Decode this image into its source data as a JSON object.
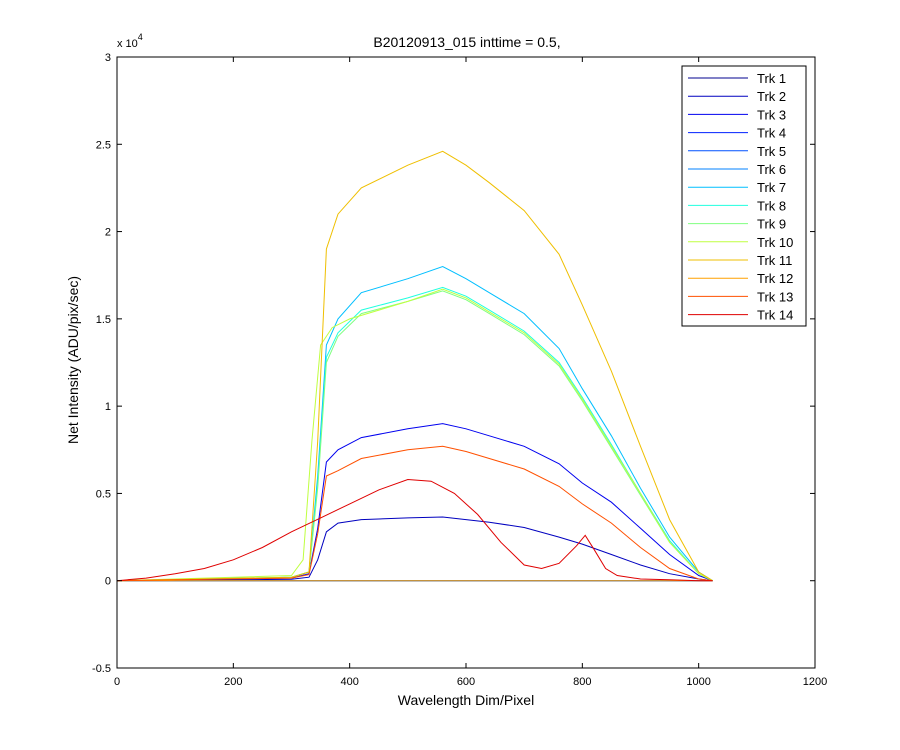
{
  "chart_data": {
    "type": "line",
    "title": "B20120913_015 inttime = 0.5,",
    "xlabel": "Wavelength Dim/Pixel",
    "ylabel": "Net Intensity (ADU/pix/sec)",
    "xlim": [
      0,
      1200
    ],
    "ylim": [
      -5000,
      30000
    ],
    "x_ticks": [
      0,
      200,
      400,
      600,
      800,
      1000,
      1200
    ],
    "x_tick_labels": [
      "0",
      "200",
      "400",
      "600",
      "800",
      "1000",
      "1200"
    ],
    "y_ticks": [
      -5000,
      0,
      5000,
      10000,
      15000,
      20000,
      25000,
      30000
    ],
    "y_tick_labels": [
      "-0.5",
      "0",
      "0.5",
      "1",
      "1.5",
      "2",
      "2.5",
      "3"
    ],
    "y_multiplier": "x 10",
    "y_multiplier_exp": "4",
    "grid": false,
    "legend_position": "top-right",
    "series": [
      {
        "name": "Trk 1",
        "color": "#00008F",
        "x": [
          0,
          1024
        ],
        "y": [
          0,
          0
        ]
      },
      {
        "name": "Trk 2",
        "color": "#0000BF",
        "x": [
          0,
          300,
          330,
          345,
          360,
          380,
          420,
          500,
          560,
          600,
          640,
          700,
          760,
          800,
          850,
          900,
          950,
          1000,
          1024
        ],
        "y": [
          0,
          80,
          200,
          1200,
          2800,
          3300,
          3500,
          3600,
          3650,
          3500,
          3350,
          3050,
          2500,
          2100,
          1500,
          900,
          400,
          100,
          0
        ]
      },
      {
        "name": "Trk 3",
        "color": "#0000EF",
        "x": [
          0,
          300,
          330,
          345,
          360,
          380,
          420,
          500,
          560,
          600,
          640,
          700,
          760,
          800,
          850,
          900,
          950,
          1000,
          1024
        ],
        "y": [
          0,
          150,
          400,
          3000,
          6800,
          7500,
          8200,
          8700,
          9000,
          8700,
          8300,
          7700,
          6700,
          5600,
          4500,
          3000,
          1500,
          300,
          0
        ]
      },
      {
        "name": "Trk 4",
        "color": "#0020FF",
        "x": [
          0,
          1024
        ],
        "y": [
          0,
          0
        ]
      },
      {
        "name": "Trk 5",
        "color": "#0050FF",
        "x": [
          0,
          1024
        ],
        "y": [
          0,
          0
        ]
      },
      {
        "name": "Trk 6",
        "color": "#0080FF",
        "x": [
          0,
          1024
        ],
        "y": [
          0,
          0
        ]
      },
      {
        "name": "Trk 7",
        "color": "#00BFFF",
        "x": [
          0,
          300,
          330,
          345,
          360,
          380,
          420,
          500,
          560,
          600,
          640,
          700,
          760,
          800,
          850,
          900,
          950,
          1000,
          1024
        ],
        "y": [
          0,
          200,
          500,
          6000,
          13500,
          15000,
          16500,
          17300,
          18000,
          17300,
          16500,
          15300,
          13300,
          11000,
          8300,
          5300,
          2500,
          500,
          0
        ]
      },
      {
        "name": "Trk 8",
        "color": "#20FFDF",
        "x": [
          0,
          300,
          330,
          345,
          360,
          380,
          420,
          500,
          560,
          600,
          640,
          700,
          760,
          800,
          850,
          900,
          950,
          1000,
          1024
        ],
        "y": [
          0,
          200,
          500,
          5500,
          12800,
          14200,
          15500,
          16200,
          16800,
          16300,
          15500,
          14300,
          12500,
          10500,
          7800,
          5000,
          2300,
          400,
          0
        ]
      },
      {
        "name": "Trk 9",
        "color": "#80FF80",
        "x": [
          0,
          300,
          330,
          345,
          360,
          380,
          420,
          500,
          560,
          600,
          640,
          700,
          760,
          800,
          850,
          900,
          950,
          1000,
          1024
        ],
        "y": [
          0,
          200,
          500,
          5300,
          12500,
          14000,
          15300,
          16000,
          16600,
          16100,
          15300,
          14100,
          12300,
          10300,
          7600,
          4900,
          2200,
          400,
          0
        ]
      },
      {
        "name": "Trk 10",
        "color": "#BFFF40",
        "x": [
          0,
          300,
          320,
          335,
          350,
          370,
          400,
          500,
          560,
          600,
          640,
          700,
          760,
          800,
          850,
          900,
          950,
          1000,
          1024
        ],
        "y": [
          0,
          300,
          1200,
          8000,
          13500,
          14500,
          15000,
          16000,
          16700,
          16200,
          15400,
          14200,
          12400,
          10400,
          7700,
          5000,
          2200,
          400,
          0
        ]
      },
      {
        "name": "Trk 11",
        "color": "#EFBF00",
        "x": [
          0,
          300,
          330,
          345,
          360,
          380,
          420,
          500,
          560,
          600,
          640,
          700,
          760,
          800,
          850,
          900,
          950,
          1000,
          1024
        ],
        "y": [
          0,
          200,
          500,
          8000,
          19000,
          21000,
          22500,
          23800,
          24600,
          23800,
          22800,
          21200,
          18700,
          15800,
          12000,
          7700,
          3500,
          500,
          0
        ]
      },
      {
        "name": "Trk 12",
        "color": "#FFA000",
        "x": [
          0,
          1024
        ],
        "y": [
          0,
          0
        ]
      },
      {
        "name": "Trk 13",
        "color": "#FF5000",
        "x": [
          0,
          300,
          330,
          345,
          360,
          380,
          420,
          500,
          560,
          600,
          640,
          700,
          760,
          800,
          850,
          900,
          950,
          1000,
          1024
        ],
        "y": [
          0,
          150,
          350,
          2700,
          6000,
          6300,
          7000,
          7500,
          7700,
          7400,
          7000,
          6400,
          5400,
          4400,
          3300,
          1900,
          700,
          100,
          0
        ]
      },
      {
        "name": "Trk 14",
        "color": "#DF0000",
        "x": [
          0,
          50,
          100,
          150,
          200,
          250,
          300,
          350,
          400,
          450,
          500,
          540,
          580,
          620,
          660,
          700,
          730,
          760,
          790,
          805,
          820,
          840,
          860,
          900,
          950,
          1000,
          1024
        ],
        "y": [
          0,
          150,
          400,
          700,
          1200,
          1900,
          2800,
          3600,
          4400,
          5200,
          5800,
          5700,
          5000,
          3800,
          2200,
          900,
          700,
          1000,
          2000,
          2600,
          1800,
          700,
          300,
          100,
          50,
          0,
          0
        ]
      }
    ]
  }
}
